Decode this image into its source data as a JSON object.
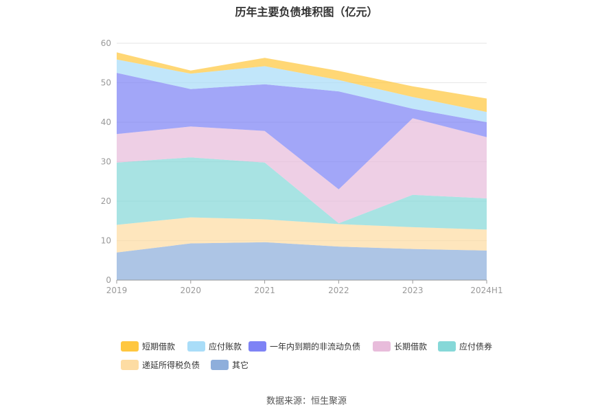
{
  "title": "历年主要负债堆积图（亿元）",
  "source": "数据来源：恒生聚源",
  "chart_data": {
    "type": "area",
    "stacked": true,
    "categories": [
      "2019",
      "2020",
      "2021",
      "2022",
      "2023",
      "2024H1"
    ],
    "y_ticks": [
      "0",
      "10",
      "20",
      "30",
      "40",
      "50",
      "60"
    ],
    "ylim": [
      0,
      60
    ],
    "grid": true,
    "legend_position": "bottom",
    "series": [
      {
        "name": "其它",
        "color": "#8eaedb",
        "values": [
          7.0,
          9.3,
          9.6,
          8.5,
          7.9,
          7.5
        ]
      },
      {
        "name": "递延所得税负债",
        "color": "#fddca3",
        "values": [
          7.0,
          6.6,
          5.8,
          5.7,
          5.5,
          5.3
        ]
      },
      {
        "name": "应付债券",
        "color": "#86d8d8",
        "values": [
          15.8,
          15.2,
          14.4,
          0.2,
          8.2,
          7.9
        ]
      },
      {
        "name": "长期借款",
        "color": "#e8bcdb",
        "values": [
          7.2,
          7.8,
          8.0,
          8.6,
          19.4,
          15.5
        ]
      },
      {
        "name": "一年内到期的非流动负债",
        "color": "#7e83f5",
        "values": [
          15.5,
          9.5,
          11.8,
          24.8,
          2.4,
          3.8
        ]
      },
      {
        "name": "应付账款",
        "color": "#a9ddf8",
        "values": [
          3.4,
          3.9,
          4.6,
          2.9,
          3.0,
          2.6
        ]
      },
      {
        "name": "短期借款",
        "color": "#ffc740",
        "values": [
          1.8,
          0.8,
          2.1,
          2.3,
          2.7,
          3.4
        ]
      }
    ],
    "legend_order": [
      "短期借款",
      "应付账款",
      "一年内到期的非流动负债",
      "长期借款",
      "应付债券",
      "递延所得税负债",
      "其它"
    ]
  }
}
